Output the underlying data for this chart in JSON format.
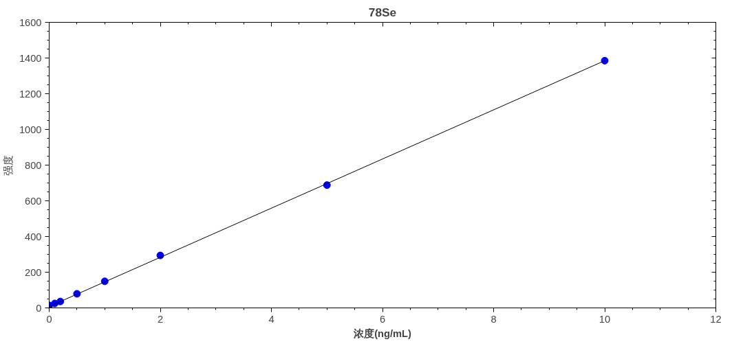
{
  "chart_data": {
    "type": "scatter",
    "title": "78Se",
    "xlabel": "浓度(ng/mL)",
    "ylabel": "强度",
    "series": [
      {
        "color": "#0000ff",
        "marker": "circle",
        "x": [
          0,
          0.1,
          0.2,
          0.5,
          1,
          2,
          5,
          10
        ],
        "values": [
          14,
          25,
          36,
          79,
          149,
          294,
          688,
          1385
        ]
      },
      {
        "type": "line",
        "color": "#000000",
        "marker": "none",
        "x": [
          0,
          10
        ],
        "values": [
          8,
          1385
        ]
      }
    ],
    "xlim": [
      0,
      12
    ],
    "ylim": [
      0,
      1600
    ],
    "xticks": [
      0,
      2,
      4,
      6,
      8,
      10,
      12
    ],
    "yticks": [
      0,
      200,
      400,
      600,
      800,
      1000,
      1200,
      1400,
      1600
    ],
    "grid": false
  }
}
